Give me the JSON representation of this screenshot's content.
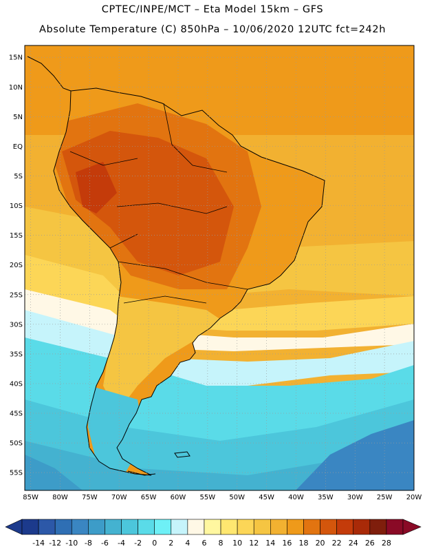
{
  "header": {
    "line1": "CPTEC/INPE/MCT –  Eta Model 15km – GFS",
    "line2": "Absolute Temperature (C) 850hPa – 10/06/2020 12UTC fct=242h"
  },
  "map": {
    "region": "South America",
    "lat_range": [
      -58,
      17
    ],
    "lon_range": [
      -86,
      -20
    ],
    "lat_labels": [
      "15N",
      "10N",
      "5N",
      "EQ",
      "5S",
      "10S",
      "15S",
      "20S",
      "25S",
      "30S",
      "35S",
      "40S",
      "45S",
      "50S",
      "55S"
    ],
    "lat_values": [
      15,
      10,
      5,
      0,
      -5,
      -10,
      -15,
      -20,
      -25,
      -30,
      -35,
      -40,
      -45,
      -50,
      -55
    ],
    "lon_labels": [
      "85W",
      "80W",
      "75W",
      "70W",
      "65W",
      "60W",
      "55W",
      "50W",
      "45W",
      "40W",
      "35W",
      "30W",
      "25W",
      "20W"
    ],
    "lon_values": [
      -85,
      -80,
      -75,
      -70,
      -65,
      -60,
      -55,
      -50,
      -45,
      -40,
      -35,
      -30,
      -25,
      -20
    ],
    "grid": "dotted"
  },
  "colorbar": {
    "labels": [
      "-14",
      "-12",
      "-10",
      "-8",
      "-6",
      "-4",
      "-2",
      "0",
      "2",
      "4",
      "6",
      "8",
      "10",
      "12",
      "14",
      "16",
      "18",
      "20",
      "22",
      "24",
      "26",
      "28"
    ],
    "colors": [
      "#1c3a8c",
      "#2c58a8",
      "#2f6fb4",
      "#3a86c2",
      "#3d9cc8",
      "#44b2d0",
      "#4cc6db",
      "#5adbe8",
      "#6ef0f6",
      "#c6f4fb",
      "#fff8e6",
      "#fff7a0",
      "#ffe770",
      "#fcd657",
      "#f5c542",
      "#f2b131",
      "#ef9a1a",
      "#e27410",
      "#d4560c",
      "#c43b0a",
      "#a92a08",
      "#7f1e0c",
      "#8a0a26"
    ],
    "under_color": "#1c3a8c",
    "over_color": "#8a0a26"
  }
}
